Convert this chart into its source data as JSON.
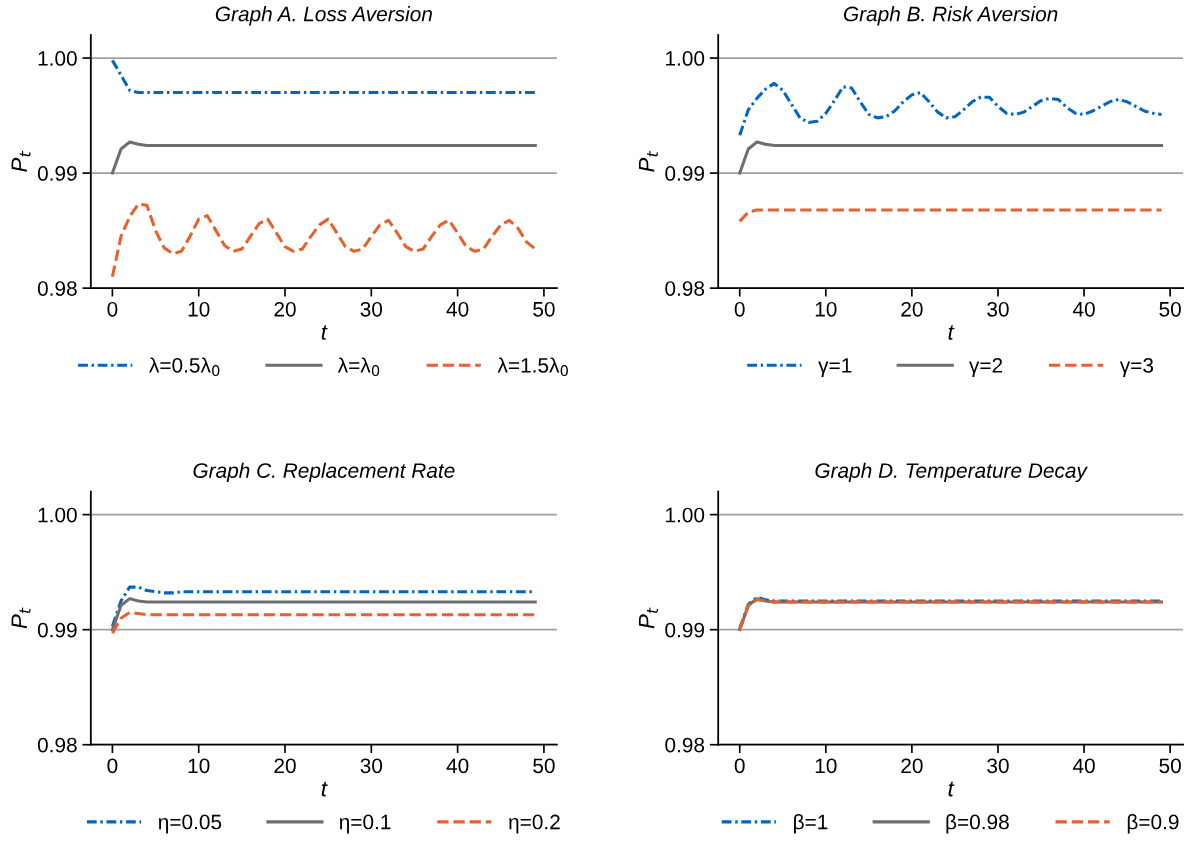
{
  "chart_data": [
    {
      "type": "line",
      "title": "Graph A. Loss Aversion",
      "xlabel": "t",
      "ylabel": "P$_{t}$",
      "xlim": [
        -2.5,
        51.5
      ],
      "ylim": [
        0.98,
        1.002
      ],
      "xticks": [
        0,
        10,
        20,
        30,
        40,
        50
      ],
      "yticks": [
        {
          "value": 0.98,
          "label": "0.98"
        },
        {
          "value": 0.99,
          "label": "0.99"
        },
        {
          "value": 1.0,
          "label": "1.00"
        }
      ],
      "grid": "y",
      "legend": "bottom",
      "marker": "none",
      "x": [
        0,
        1,
        2,
        3,
        4,
        5,
        6,
        7,
        8,
        9,
        10,
        11,
        12,
        13,
        14,
        15,
        16,
        17,
        18,
        19,
        20,
        21,
        22,
        23,
        24,
        25,
        26,
        27,
        28,
        29,
        30,
        31,
        32,
        33,
        34,
        35,
        36,
        37,
        38,
        39,
        40,
        41,
        42,
        43,
        44,
        45,
        46,
        47,
        48,
        49
      ],
      "series": [
        {
          "name": "λ=0.5λ$_{0}$",
          "color": "#0066c0",
          "line_style": "dashdot",
          "values": [
            0.9998,
            0.9985,
            0.9972,
            0.997,
            0.997,
            0.997,
            0.997,
            0.997,
            0.997,
            0.997,
            0.997,
            0.997,
            0.997,
            0.997,
            0.997,
            0.997,
            0.997,
            0.997,
            0.997,
            0.997,
            0.997,
            0.997,
            0.997,
            0.997,
            0.997,
            0.997,
            0.997,
            0.997,
            0.997,
            0.997,
            0.997,
            0.997,
            0.997,
            0.997,
            0.997,
            0.997,
            0.997,
            0.997,
            0.997,
            0.997,
            0.997,
            0.997,
            0.997,
            0.997,
            0.997,
            0.997,
            0.997,
            0.997,
            0.997,
            0.997
          ]
        },
        {
          "name": "λ=λ$_{0}$",
          "color": "#6e6e6e",
          "line_style": "solid",
          "values": [
            0.99,
            0.9921,
            0.9927,
            0.9925,
            0.9924,
            0.9924,
            0.9924,
            0.9924,
            0.9924,
            0.9924,
            0.9924,
            0.9924,
            0.9924,
            0.9924,
            0.9924,
            0.9924,
            0.9924,
            0.9924,
            0.9924,
            0.9924,
            0.9924,
            0.9924,
            0.9924,
            0.9924,
            0.9924,
            0.9924,
            0.9924,
            0.9924,
            0.9924,
            0.9924,
            0.9924,
            0.9924,
            0.9924,
            0.9924,
            0.9924,
            0.9924,
            0.9924,
            0.9924,
            0.9924,
            0.9924,
            0.9924,
            0.9924,
            0.9924,
            0.9924,
            0.9924,
            0.9924,
            0.9924,
            0.9924,
            0.9924,
            0.9924
          ]
        },
        {
          "name": "λ=1.5λ$_{0}$",
          "color": "#e4622e",
          "line_style": "dashed",
          "values": [
            0.981,
            0.9845,
            0.9862,
            0.9873,
            0.9872,
            0.985,
            0.9835,
            0.983,
            0.9832,
            0.9845,
            0.986,
            0.9863,
            0.985,
            0.9837,
            0.9832,
            0.9834,
            0.9845,
            0.9856,
            0.986,
            0.9848,
            0.9836,
            0.9832,
            0.9834,
            0.9845,
            0.9855,
            0.986,
            0.9848,
            0.9836,
            0.9832,
            0.9834,
            0.9845,
            0.9855,
            0.9859,
            0.9848,
            0.9836,
            0.9832,
            0.9834,
            0.9845,
            0.9855,
            0.9859,
            0.9848,
            0.9836,
            0.9832,
            0.9834,
            0.9845,
            0.9855,
            0.9859,
            0.9852,
            0.984,
            0.9834
          ]
        }
      ]
    },
    {
      "type": "line",
      "title": "Graph B. Risk Aversion",
      "xlabel": "t",
      "ylabel": "P$_{t}$",
      "xlim": [
        -2.5,
        51.5
      ],
      "ylim": [
        0.98,
        1.002
      ],
      "xticks": [
        0,
        10,
        20,
        30,
        40,
        50
      ],
      "yticks": [
        {
          "value": 0.98,
          "label": "0.98"
        },
        {
          "value": 0.99,
          "label": "0.99"
        },
        {
          "value": 1.0,
          "label": "1.00"
        }
      ],
      "grid": "y",
      "legend": "bottom",
      "marker": "none",
      "x": [
        0,
        1,
        2,
        3,
        4,
        5,
        6,
        7,
        8,
        9,
        10,
        11,
        12,
        13,
        14,
        15,
        16,
        17,
        18,
        19,
        20,
        21,
        22,
        23,
        24,
        25,
        26,
        27,
        28,
        29,
        30,
        31,
        32,
        33,
        34,
        35,
        36,
        37,
        38,
        39,
        40,
        41,
        42,
        43,
        44,
        45,
        46,
        47,
        48,
        49
      ],
      "series": [
        {
          "name": "γ=1",
          "color": "#0066c0",
          "line_style": "dashdot",
          "values": [
            0.9933,
            0.9955,
            0.9965,
            0.9973,
            0.9978,
            0.9972,
            0.996,
            0.9948,
            0.9944,
            0.9945,
            0.9952,
            0.9963,
            0.9975,
            0.9974,
            0.9962,
            0.9951,
            0.9948,
            0.9949,
            0.9954,
            0.9962,
            0.9968,
            0.997,
            0.9962,
            0.9953,
            0.9948,
            0.9949,
            0.9955,
            0.9962,
            0.9966,
            0.9966,
            0.9958,
            0.9952,
            0.9951,
            0.9953,
            0.9958,
            0.9963,
            0.9965,
            0.9964,
            0.9957,
            0.9952,
            0.9951,
            0.9954,
            0.9958,
            0.9962,
            0.9964,
            0.9962,
            0.9958,
            0.9954,
            0.9952,
            0.9951
          ]
        },
        {
          "name": "γ=2",
          "color": "#6e6e6e",
          "line_style": "solid",
          "values": [
            0.99,
            0.9921,
            0.9927,
            0.9925,
            0.9924,
            0.9924,
            0.9924,
            0.9924,
            0.9924,
            0.9924,
            0.9924,
            0.9924,
            0.9924,
            0.9924,
            0.9924,
            0.9924,
            0.9924,
            0.9924,
            0.9924,
            0.9924,
            0.9924,
            0.9924,
            0.9924,
            0.9924,
            0.9924,
            0.9924,
            0.9924,
            0.9924,
            0.9924,
            0.9924,
            0.9924,
            0.9924,
            0.9924,
            0.9924,
            0.9924,
            0.9924,
            0.9924,
            0.9924,
            0.9924,
            0.9924,
            0.9924,
            0.9924,
            0.9924,
            0.9924,
            0.9924,
            0.9924,
            0.9924,
            0.9924,
            0.9924,
            0.9924
          ]
        },
        {
          "name": "γ=3",
          "color": "#e4622e",
          "line_style": "dashed",
          "values": [
            0.9858,
            0.9866,
            0.9868,
            0.9868,
            0.9868,
            0.9868,
            0.9868,
            0.9868,
            0.9868,
            0.9868,
            0.9868,
            0.9868,
            0.9868,
            0.9868,
            0.9868,
            0.9868,
            0.9868,
            0.9868,
            0.9868,
            0.9868,
            0.9868,
            0.9868,
            0.9868,
            0.9868,
            0.9868,
            0.9868,
            0.9868,
            0.9868,
            0.9868,
            0.9868,
            0.9868,
            0.9868,
            0.9868,
            0.9868,
            0.9868,
            0.9868,
            0.9868,
            0.9868,
            0.9868,
            0.9868,
            0.9868,
            0.9868,
            0.9868,
            0.9868,
            0.9868,
            0.9868,
            0.9868,
            0.9868,
            0.9868,
            0.9868
          ]
        }
      ]
    },
    {
      "type": "line",
      "title": "Graph C. Replacement Rate",
      "xlabel": "t",
      "ylabel": "P$_{t}$",
      "xlim": [
        -2.5,
        51.5
      ],
      "ylim": [
        0.98,
        1.002
      ],
      "xticks": [
        0,
        10,
        20,
        30,
        40,
        50
      ],
      "yticks": [
        {
          "value": 0.98,
          "label": "0.98"
        },
        {
          "value": 0.99,
          "label": "0.99"
        },
        {
          "value": 1.0,
          "label": "1.00"
        }
      ],
      "grid": "y",
      "legend": "bottom",
      "marker": "none",
      "x": [
        0,
        1,
        2,
        3,
        4,
        5,
        6,
        7,
        8,
        9,
        10,
        11,
        12,
        13,
        14,
        15,
        16,
        17,
        18,
        19,
        20,
        21,
        22,
        23,
        24,
        25,
        26,
        27,
        28,
        29,
        30,
        31,
        32,
        33,
        34,
        35,
        36,
        37,
        38,
        39,
        40,
        41,
        42,
        43,
        44,
        45,
        46,
        47,
        48,
        49
      ],
      "series": [
        {
          "name": "η=0.05",
          "color": "#0066c0",
          "line_style": "dashdot",
          "values": [
            0.9903,
            0.9925,
            0.9937,
            0.9937,
            0.9934,
            0.9933,
            0.9932,
            0.9932,
            0.9933,
            0.9933,
            0.9933,
            0.9933,
            0.9933,
            0.9933,
            0.9933,
            0.9933,
            0.9933,
            0.9933,
            0.9933,
            0.9933,
            0.9933,
            0.9933,
            0.9933,
            0.9933,
            0.9933,
            0.9933,
            0.9933,
            0.9933,
            0.9933,
            0.9933,
            0.9933,
            0.9933,
            0.9933,
            0.9933,
            0.9933,
            0.9933,
            0.9933,
            0.9933,
            0.9933,
            0.9933,
            0.9933,
            0.9933,
            0.9933,
            0.9933,
            0.9933,
            0.9933,
            0.9933,
            0.9933,
            0.9933,
            0.9933
          ]
        },
        {
          "name": "η=0.1",
          "color": "#6e6e6e",
          "line_style": "solid",
          "values": [
            0.99,
            0.9921,
            0.9927,
            0.9925,
            0.9924,
            0.9924,
            0.9924,
            0.9924,
            0.9924,
            0.9924,
            0.9924,
            0.9924,
            0.9924,
            0.9924,
            0.9924,
            0.9924,
            0.9924,
            0.9924,
            0.9924,
            0.9924,
            0.9924,
            0.9924,
            0.9924,
            0.9924,
            0.9924,
            0.9924,
            0.9924,
            0.9924,
            0.9924,
            0.9924,
            0.9924,
            0.9924,
            0.9924,
            0.9924,
            0.9924,
            0.9924,
            0.9924,
            0.9924,
            0.9924,
            0.9924,
            0.9924,
            0.9924,
            0.9924,
            0.9924,
            0.9924,
            0.9924,
            0.9924,
            0.9924,
            0.9924,
            0.9924
          ]
        },
        {
          "name": "η=0.2",
          "color": "#e4622e",
          "line_style": "dashed",
          "values": [
            0.9897,
            0.991,
            0.9915,
            0.9914,
            0.9913,
            0.9913,
            0.9913,
            0.9913,
            0.9913,
            0.9913,
            0.9913,
            0.9913,
            0.9913,
            0.9913,
            0.9913,
            0.9913,
            0.9913,
            0.9913,
            0.9913,
            0.9913,
            0.9913,
            0.9913,
            0.9913,
            0.9913,
            0.9913,
            0.9913,
            0.9913,
            0.9913,
            0.9913,
            0.9913,
            0.9913,
            0.9913,
            0.9913,
            0.9913,
            0.9913,
            0.9913,
            0.9913,
            0.9913,
            0.9913,
            0.9913,
            0.9913,
            0.9913,
            0.9913,
            0.9913,
            0.9913,
            0.9913,
            0.9913,
            0.9913,
            0.9913,
            0.9913
          ]
        }
      ]
    },
    {
      "type": "line",
      "title": "Graph D. Temperature Decay",
      "xlabel": "t",
      "ylabel": "P$_{t}$",
      "xlim": [
        -2.5,
        51.5
      ],
      "ylim": [
        0.98,
        1.002
      ],
      "xticks": [
        0,
        10,
        20,
        30,
        40,
        50
      ],
      "yticks": [
        {
          "value": 0.98,
          "label": "0.98"
        },
        {
          "value": 0.99,
          "label": "0.99"
        },
        {
          "value": 1.0,
          "label": "1.00"
        }
      ],
      "grid": "y",
      "legend": "bottom",
      "marker": "none",
      "x": [
        0,
        1,
        2,
        3,
        4,
        5,
        6,
        7,
        8,
        9,
        10,
        11,
        12,
        13,
        14,
        15,
        16,
        17,
        18,
        19,
        20,
        21,
        22,
        23,
        24,
        25,
        26,
        27,
        28,
        29,
        30,
        31,
        32,
        33,
        34,
        35,
        36,
        37,
        38,
        39,
        40,
        41,
        42,
        43,
        44,
        45,
        46,
        47,
        48,
        49
      ],
      "series": [
        {
          "name": "β=1",
          "color": "#0066c0",
          "line_style": "dashdot",
          "values": [
            0.9901,
            0.9922,
            0.9928,
            0.9926,
            0.9925,
            0.9925,
            0.9925,
            0.9925,
            0.9925,
            0.9925,
            0.9925,
            0.9925,
            0.9925,
            0.9925,
            0.9925,
            0.9925,
            0.9925,
            0.9925,
            0.9925,
            0.9925,
            0.9925,
            0.9925,
            0.9925,
            0.9925,
            0.9925,
            0.9925,
            0.9925,
            0.9925,
            0.9925,
            0.9925,
            0.9925,
            0.9925,
            0.9925,
            0.9925,
            0.9925,
            0.9925,
            0.9925,
            0.9925,
            0.9925,
            0.9925,
            0.9925,
            0.9925,
            0.9925,
            0.9925,
            0.9925,
            0.9925,
            0.9925,
            0.9925,
            0.9925,
            0.9925
          ]
        },
        {
          "name": "β=0.98",
          "color": "#6e6e6e",
          "line_style": "solid",
          "values": [
            0.99,
            0.9921,
            0.9927,
            0.9925,
            0.9924,
            0.9924,
            0.9924,
            0.9924,
            0.9924,
            0.9924,
            0.9924,
            0.9924,
            0.9924,
            0.9924,
            0.9924,
            0.9924,
            0.9924,
            0.9924,
            0.9924,
            0.9924,
            0.9924,
            0.9924,
            0.9924,
            0.9924,
            0.9924,
            0.9924,
            0.9924,
            0.9924,
            0.9924,
            0.9924,
            0.9924,
            0.9924,
            0.9924,
            0.9924,
            0.9924,
            0.9924,
            0.9924,
            0.9924,
            0.9924,
            0.9924,
            0.9924,
            0.9924,
            0.9924,
            0.9924,
            0.9924,
            0.9924,
            0.9924,
            0.9924,
            0.9924,
            0.9924
          ]
        },
        {
          "name": "β=0.9",
          "color": "#e4622e",
          "line_style": "dashed",
          "values": [
            0.99,
            0.9921,
            0.9926,
            0.9925,
            0.9924,
            0.9924,
            0.9924,
            0.9924,
            0.9924,
            0.9924,
            0.9924,
            0.9924,
            0.9924,
            0.9924,
            0.9924,
            0.9924,
            0.9924,
            0.9924,
            0.9924,
            0.9924,
            0.9924,
            0.9924,
            0.9924,
            0.9924,
            0.9924,
            0.9924,
            0.9924,
            0.9924,
            0.9924,
            0.9924,
            0.9924,
            0.9924,
            0.9924,
            0.9924,
            0.9924,
            0.9924,
            0.9924,
            0.9924,
            0.9924,
            0.9924,
            0.9924,
            0.9924,
            0.9924,
            0.9924,
            0.9924,
            0.9924,
            0.9924,
            0.9924,
            0.9924,
            0.9924
          ]
        }
      ]
    }
  ]
}
